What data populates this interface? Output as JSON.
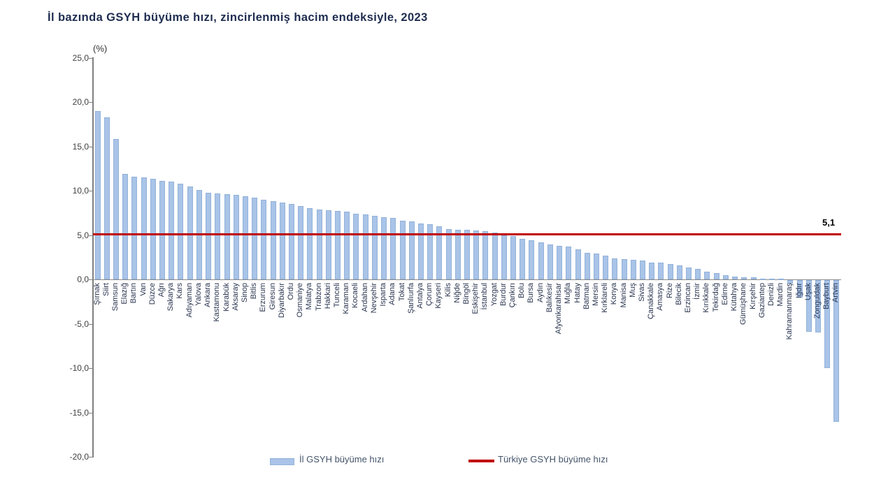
{
  "title": "İl bazında GSYH büyüme hızı, zincirlenmiş hacim endeksiyle, 2023",
  "unit_label": "(%)",
  "colors": {
    "bar_fill": "#a9c4e8",
    "bar_border": "#93b2d9",
    "reference_line": "#c00000",
    "title_text": "#1f2d50"
  },
  "y_axis": {
    "tick_labels": [
      "25,0",
      "20,0",
      "15,0",
      "10,0",
      "5,0",
      "0,0",
      "-5,0",
      "-10,0",
      "-15,0",
      "-20,0"
    ],
    "tick_values": [
      25,
      20,
      15,
      10,
      5,
      0,
      -5,
      -10,
      -15,
      -20
    ],
    "min": -20,
    "max": 25
  },
  "reference_line": {
    "name": "Türkiye GSYH büyüme hızı",
    "value": 5.1,
    "label": "5,1"
  },
  "legend": {
    "bar_series_label": "İl GSYH büyüme hızı",
    "line_series_label": "Türkiye GSYH büyüme hızı"
  },
  "chart_data": {
    "type": "bar",
    "title": "İl bazında GSYH büyüme hızı, zincirlenmiş hacim endeksiyle, 2023",
    "ylabel": "(%)",
    "ylim": [
      -20,
      25
    ],
    "grid": false,
    "legend_position": "bottom",
    "reference_line": {
      "label": "Türkiye GSYH büyüme hızı",
      "value": 5.1
    },
    "categories": [
      "Şırnak",
      "Siirt",
      "Samsun",
      "Elazığ",
      "Bartın",
      "Van",
      "Düzce",
      "Ağrı",
      "Sakarya",
      "Kars",
      "Adıyaman",
      "Yalova",
      "Ankara",
      "Kastamonu",
      "Karabük",
      "Aksaray",
      "Sinop",
      "Bitlis",
      "Erzurum",
      "Giresun",
      "Diyarbakır",
      "Ordu",
      "Osmaniye",
      "Malatya",
      "Trabzon",
      "Hakkari",
      "Tunceli",
      "Karaman",
      "Kocaeli",
      "Ardahan",
      "Nevşehir",
      "Isparta",
      "Adana",
      "Tokat",
      "Şanlıurfa",
      "Antalya",
      "Çorum",
      "Kayseri",
      "Kilis",
      "Niğde",
      "Bingöl",
      "Eskişehir",
      "İstanbul",
      "Yozgat",
      "Burdur",
      "Çankırı",
      "Bolu",
      "Bursa",
      "Aydın",
      "Balıkesir",
      "Afyonkarahisar",
      "Muğla",
      "Hatay",
      "Batman",
      "Mersin",
      "Kırklareli",
      "Konya",
      "Manisa",
      "Muş",
      "Sivas",
      "Çanakkale",
      "Amasya",
      "Rize",
      "Bilecik",
      "Erzincan",
      "İzmir",
      "Kırıkkale",
      "Tekirdağ",
      "Edirne",
      "Kütahya",
      "Gümüşhane",
      "Kırşehir",
      "Gaziantep",
      "Denizli",
      "Mardin",
      "Kahramanmaraş",
      "Iğdır",
      "Uşak",
      "Zonguldak",
      "Bayburt",
      "Artvin"
    ],
    "values": [
      19.0,
      18.3,
      15.8,
      11.9,
      11.6,
      11.5,
      11.3,
      11.1,
      11.0,
      10.8,
      10.5,
      10.1,
      9.8,
      9.7,
      9.6,
      9.5,
      9.4,
      9.2,
      9.0,
      8.8,
      8.7,
      8.5,
      8.3,
      8.0,
      7.9,
      7.8,
      7.7,
      7.6,
      7.4,
      7.3,
      7.2,
      7.0,
      6.9,
      6.6,
      6.5,
      6.3,
      6.2,
      6.0,
      5.7,
      5.6,
      5.6,
      5.5,
      5.4,
      5.3,
      5.0,
      4.9,
      4.6,
      4.4,
      4.2,
      3.9,
      3.8,
      3.7,
      3.4,
      3.0,
      2.9,
      2.7,
      2.4,
      2.3,
      2.2,
      2.1,
      1.9,
      1.9,
      1.7,
      1.6,
      1.3,
      1.2,
      0.9,
      0.7,
      0.5,
      0.3,
      0.2,
      0.2,
      0.1,
      0.1,
      0.1,
      -0.4,
      -2.0,
      -5.8,
      -5.9,
      -9.9,
      -16.0
    ]
  }
}
